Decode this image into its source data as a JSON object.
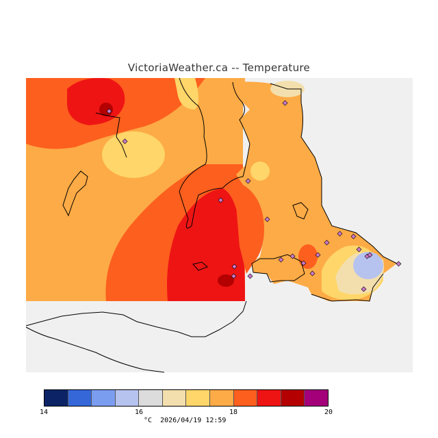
{
  "title": "VictoriaWeather.ca -- Temperature",
  "map": {
    "background_color": "#f0f0f0",
    "land_outline_color": "#000000",
    "station_marker_color": "#c978c9"
  },
  "colorbar": {
    "colors": [
      "#0c2466",
      "#3567d9",
      "#7b9df0",
      "#b7c3ef",
      "#dcdcdc",
      "#f3dfad",
      "#fed66a",
      "#fdab46",
      "#fd5f1e",
      "#ee1414",
      "#b40000",
      "#a4007a"
    ],
    "tick_labels": [
      "14",
      "16",
      "18",
      "20"
    ]
  },
  "footer": {
    "unit": "°C",
    "timestamp": "2026/04/19 12:59"
  }
}
